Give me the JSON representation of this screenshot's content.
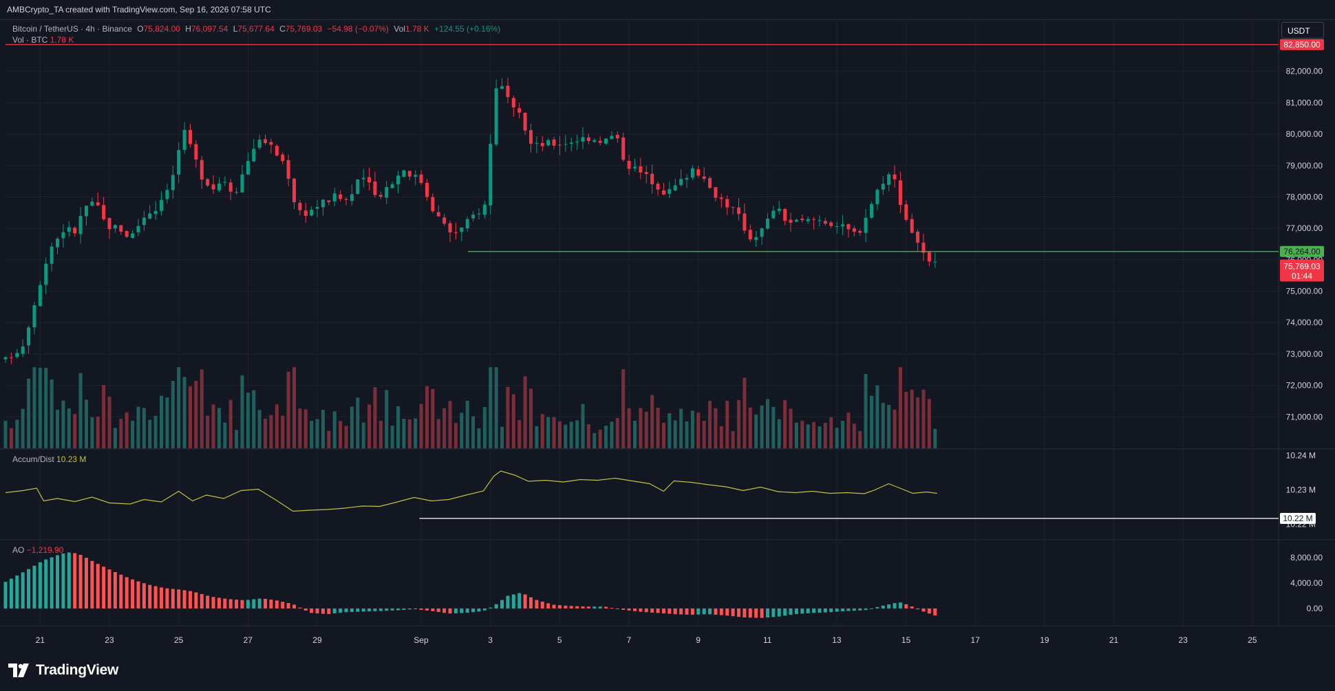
{
  "header": {
    "attribution": "AMBCrypto_TA created with TradingView.com, Sep 16, 2026 07:58 UTC"
  },
  "legend": {
    "symbol": "Bitcoin / TetherUS · 4h · Binance",
    "o_label": "O",
    "o_value": "75,824.00",
    "h_label": "H",
    "h_value": "76,097.54",
    "l_label": "L",
    "l_value": "75,677.64",
    "c_label": "C",
    "c_value": "75,769.03",
    "change": "−54.98 (−0.07%)",
    "vol_label": "Vol",
    "vol_value": "1.78 K",
    "vol_change": "+124.55 (+0.16%)"
  },
  "volume_legend": {
    "label": "Vol · BTC",
    "value": "1.78 K"
  },
  "currency_button": "USDT",
  "brand": {
    "name": "TradingView"
  },
  "colors": {
    "background": "#131722",
    "up": "#089981",
    "down": "#f23645",
    "up_volume": "#1f5f5e",
    "down_volume": "#7a2e39",
    "ad_line": "#c3c33a",
    "support_line": "#4caf50",
    "resistance_line": "#f23645",
    "ao_up": "#26a69a",
    "ao_down": "#ff5252"
  },
  "chart_data": [
    {
      "type": "candlestick",
      "title": "Bitcoin / TetherUS · 4h · Binance",
      "interval": "4h",
      "ylim": [
        70000,
        83000
      ],
      "y_ticks": [
        "71,000.00",
        "72,000.00",
        "73,000.00",
        "74,000.00",
        "75,000.00",
        "76,000.00",
        "77,000.00",
        "78,000.00",
        "79,000.00",
        "80,000.00",
        "81,000.00",
        "82,000.00"
      ],
      "x_ticks": [
        "21",
        "23",
        "25",
        "27",
        "29",
        "Sep",
        "3",
        "5",
        "7",
        "9",
        "11",
        "13",
        "15",
        "17",
        "19",
        "21",
        "23",
        "25"
      ],
      "x_tick_days": [
        21,
        23,
        25,
        27,
        29,
        32,
        34,
        36,
        38,
        40,
        42,
        44,
        46,
        48,
        50,
        52,
        54,
        56
      ],
      "start_day": 20.0,
      "bar_days": 0.1667,
      "close_path": [
        [
          20.0,
          72800
        ],
        [
          20.5,
          73300
        ],
        [
          21.0,
          75300
        ],
        [
          21.3,
          76400
        ],
        [
          21.7,
          77000
        ],
        [
          22.0,
          76900
        ],
        [
          22.3,
          77700
        ],
        [
          22.6,
          77800
        ],
        [
          22.9,
          77100
        ],
        [
          23.3,
          77000
        ],
        [
          23.6,
          76700
        ],
        [
          24.0,
          77400
        ],
        [
          24.4,
          77700
        ],
        [
          24.6,
          78200
        ],
        [
          24.9,
          78800
        ],
        [
          25.1,
          80200
        ],
        [
          25.4,
          79400
        ],
        [
          25.7,
          78600
        ],
        [
          26.0,
          78300
        ],
        [
          26.3,
          78600
        ],
        [
          26.6,
          78100
        ],
        [
          26.9,
          78900
        ],
        [
          27.2,
          79700
        ],
        [
          27.5,
          79800
        ],
        [
          27.8,
          79400
        ],
        [
          28.1,
          79000
        ],
        [
          28.4,
          77600
        ],
        [
          28.7,
          77500
        ],
        [
          29.1,
          77800
        ],
        [
          29.5,
          78000
        ],
        [
          29.9,
          77900
        ],
        [
          30.3,
          78700
        ],
        [
          30.7,
          78000
        ],
        [
          31.1,
          78400
        ],
        [
          31.5,
          78900
        ],
        [
          32.0,
          78500
        ],
        [
          32.4,
          77500
        ],
        [
          32.8,
          76900
        ],
        [
          33.1,
          76900
        ],
        [
          33.5,
          77400
        ],
        [
          33.9,
          77800
        ],
        [
          34.1,
          81500
        ],
        [
          34.3,
          81600
        ],
        [
          34.6,
          80800
        ],
        [
          34.9,
          80500
        ],
        [
          35.2,
          79600
        ],
        [
          35.6,
          79700
        ],
        [
          36.0,
          79700
        ],
        [
          36.4,
          79800
        ],
        [
          36.8,
          79900
        ],
        [
          37.3,
          79800
        ],
        [
          37.6,
          80000
        ],
        [
          37.9,
          79100
        ],
        [
          38.3,
          78800
        ],
        [
          38.7,
          78500
        ],
        [
          39.1,
          78100
        ],
        [
          39.5,
          78500
        ],
        [
          39.9,
          79000
        ],
        [
          40.2,
          78400
        ],
        [
          40.5,
          78100
        ],
        [
          40.8,
          77800
        ],
        [
          41.1,
          77500
        ],
        [
          41.5,
          76700
        ],
        [
          41.9,
          77000
        ],
        [
          42.2,
          77700
        ],
        [
          42.6,
          77200
        ],
        [
          43.0,
          77200
        ],
        [
          43.4,
          77300
        ],
        [
          43.8,
          77200
        ],
        [
          44.2,
          77000
        ],
        [
          44.6,
          76800
        ],
        [
          45.0,
          77800
        ],
        [
          45.3,
          78500
        ],
        [
          45.6,
          78800
        ],
        [
          45.8,
          78000
        ],
        [
          46.1,
          77000
        ],
        [
          46.3,
          76700
        ],
        [
          46.6,
          75900
        ],
        [
          46.9,
          75800
        ]
      ],
      "last_close": 75769.03,
      "last_close_label": "75,769.03",
      "countdown": "01:44",
      "support_level": 76264.0,
      "support_label": "76,264.00",
      "support_start_day": 33.35,
      "resistance_level": 82850.0,
      "resistance_label": "82,850.00"
    },
    {
      "type": "bar",
      "title": "Vol · BTC",
      "last_value_label": "1.78 K"
    },
    {
      "type": "line",
      "title": "Accum/Dist",
      "last_value_label": "10.23 M",
      "y_ticks": [
        "10.24 M",
        "10.23 M",
        "10.22 M"
      ],
      "y_tick_values": [
        10.24,
        10.23,
        10.22
      ],
      "ylim": [
        10.2165,
        10.2405
      ],
      "points": [
        [
          20.0,
          10.2292
        ],
        [
          20.5,
          10.2298
        ],
        [
          20.9,
          10.2305
        ],
        [
          21.1,
          10.2268
        ],
        [
          21.5,
          10.2275
        ],
        [
          22.0,
          10.2266
        ],
        [
          22.5,
          10.2279
        ],
        [
          23.0,
          10.2262
        ],
        [
          23.6,
          10.2259
        ],
        [
          24.0,
          10.2272
        ],
        [
          24.5,
          10.2265
        ],
        [
          25.0,
          10.2296
        ],
        [
          25.4,
          10.2268
        ],
        [
          25.8,
          10.2285
        ],
        [
          26.3,
          10.2275
        ],
        [
          26.8,
          10.2298
        ],
        [
          27.3,
          10.2302
        ],
        [
          27.8,
          10.2271
        ],
        [
          28.3,
          10.2238
        ],
        [
          28.8,
          10.2241
        ],
        [
          29.3,
          10.2243
        ],
        [
          29.8,
          10.2247
        ],
        [
          30.3,
          10.2253
        ],
        [
          30.8,
          10.2252
        ],
        [
          31.2,
          10.2262
        ],
        [
          31.8,
          10.2278
        ],
        [
          32.3,
          10.2268
        ],
        [
          32.8,
          10.2272
        ],
        [
          33.3,
          10.2285
        ],
        [
          33.8,
          10.2297
        ],
        [
          34.1,
          10.234
        ],
        [
          34.3,
          10.2355
        ],
        [
          34.7,
          10.2343
        ],
        [
          35.1,
          10.2325
        ],
        [
          35.6,
          10.2328
        ],
        [
          36.1,
          10.2323
        ],
        [
          36.6,
          10.233
        ],
        [
          37.1,
          10.2328
        ],
        [
          37.6,
          10.2334
        ],
        [
          38.1,
          10.2326
        ],
        [
          38.6,
          10.2318
        ],
        [
          39.0,
          10.2296
        ],
        [
          39.3,
          10.2326
        ],
        [
          39.8,
          10.2322
        ],
        [
          40.3,
          10.2315
        ],
        [
          40.8,
          10.2309
        ],
        [
          41.3,
          10.2298
        ],
        [
          41.8,
          10.2308
        ],
        [
          42.3,
          10.2295
        ],
        [
          42.8,
          10.2292
        ],
        [
          43.3,
          10.2296
        ],
        [
          43.8,
          10.229
        ],
        [
          44.3,
          10.2292
        ],
        [
          44.8,
          10.2289
        ],
        [
          45.1,
          10.23
        ],
        [
          45.5,
          10.2318
        ],
        [
          45.8,
          10.2306
        ],
        [
          46.2,
          10.229
        ],
        [
          46.6,
          10.2294
        ],
        [
          46.9,
          10.229
        ]
      ],
      "reference_level": 10.2217,
      "reference_label": "10.22 M",
      "reference_start_day": 31.95
    },
    {
      "type": "histogram",
      "title": "AO",
      "last_value_label": "−1,219.90",
      "y_ticks": [
        "8,000.00",
        "4,000.00",
        "0.00"
      ],
      "y_tick_values": [
        8000,
        4000,
        0
      ],
      "ylim": [
        -2500,
        10300
      ],
      "points": [
        [
          20.0,
          4200
        ],
        [
          20.6,
          6000
        ],
        [
          21.1,
          7600
        ],
        [
          21.6,
          8600
        ],
        [
          21.9,
          8900
        ],
        [
          22.2,
          8400
        ],
        [
          22.6,
          7200
        ],
        [
          23.1,
          5900
        ],
        [
          23.6,
          4700
        ],
        [
          24.1,
          3800
        ],
        [
          24.6,
          3200
        ],
        [
          25.0,
          3000
        ],
        [
          25.4,
          2700
        ],
        [
          25.9,
          1900
        ],
        [
          26.4,
          1500
        ],
        [
          26.9,
          1300
        ],
        [
          27.4,
          1600
        ],
        [
          27.8,
          1300
        ],
        [
          28.3,
          700
        ],
        [
          28.8,
          -700
        ],
        [
          29.3,
          -900
        ],
        [
          29.8,
          -600
        ],
        [
          30.3,
          -500
        ],
        [
          30.8,
          -400
        ],
        [
          31.3,
          -300
        ],
        [
          31.8,
          -100
        ],
        [
          32.3,
          -400
        ],
        [
          32.8,
          -800
        ],
        [
          33.3,
          -700
        ],
        [
          33.8,
          -400
        ],
        [
          34.1,
          400
        ],
        [
          34.5,
          2000
        ],
        [
          34.9,
          2500
        ],
        [
          35.3,
          1400
        ],
        [
          35.8,
          600
        ],
        [
          36.3,
          400
        ],
        [
          36.8,
          300
        ],
        [
          37.3,
          300
        ],
        [
          37.8,
          -200
        ],
        [
          38.3,
          -500
        ],
        [
          38.8,
          -700
        ],
        [
          39.3,
          -900
        ],
        [
          39.8,
          -1000
        ],
        [
          40.3,
          -900
        ],
        [
          40.8,
          -1100
        ],
        [
          41.3,
          -1400
        ],
        [
          41.8,
          -1500
        ],
        [
          42.3,
          -1300
        ],
        [
          42.8,
          -900
        ],
        [
          43.3,
          -700
        ],
        [
          43.8,
          -600
        ],
        [
          44.3,
          -400
        ],
        [
          44.8,
          -300
        ],
        [
          45.3,
          400
        ],
        [
          45.8,
          1000
        ],
        [
          46.1,
          500
        ],
        [
          46.4,
          -300
        ],
        [
          46.9,
          -1220
        ]
      ]
    }
  ]
}
